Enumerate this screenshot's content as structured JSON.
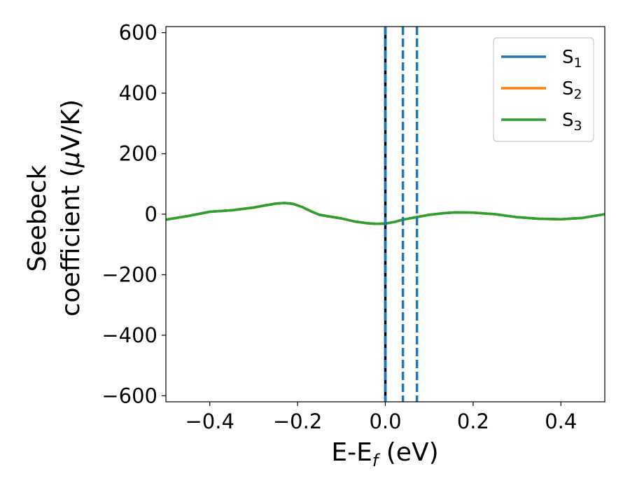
{
  "chart_data": {
    "type": "line",
    "xlabel": {
      "main": "E-E",
      "sub": "f",
      "suffix": " (eV)"
    },
    "ylabel": {
      "line1": "Seebeck",
      "line2_prefix": "coefficient  (",
      "mu": "μ",
      "line2_suffix": "V/K)"
    },
    "xlim": [
      -0.5,
      0.5
    ],
    "ylim": [
      -620,
      620
    ],
    "xticks": [
      -0.4,
      -0.2,
      0.0,
      0.2,
      0.4
    ],
    "xtick_labels": [
      "−0.4",
      "−0.2",
      "0.0",
      "0.2",
      "0.4"
    ],
    "yticks": [
      600,
      400,
      200,
      0,
      -200,
      -400,
      -600
    ],
    "ytick_labels": [
      "600",
      "400",
      "200",
      "0",
      "−200",
      "−400",
      "−600"
    ],
    "grid": false,
    "legend_position": "top-right",
    "x": [
      -0.5,
      -0.45,
      -0.4,
      -0.35,
      -0.3,
      -0.27,
      -0.25,
      -0.23,
      -0.21,
      -0.19,
      -0.17,
      -0.15,
      -0.13,
      -0.1,
      -0.07,
      -0.04,
      -0.02,
      0.0,
      0.02,
      0.04,
      0.07,
      0.1,
      0.13,
      0.16,
      0.2,
      0.25,
      0.3,
      0.35,
      0.4,
      0.45,
      0.5
    ],
    "series": [
      {
        "name": "S",
        "sub": "1",
        "color": "#1f77b4",
        "values": [
          -18,
          -6,
          8,
          13,
          22,
          30,
          35,
          37,
          34,
          24,
          10,
          -2,
          -7,
          -14,
          -24,
          -30,
          -32,
          -31,
          -26,
          -18,
          -10,
          -2,
          3,
          6,
          5,
          0,
          -10,
          -15,
          -17,
          -12,
          0
        ]
      },
      {
        "name": "S",
        "sub": "2",
        "color": "#ff7f0e",
        "values": [
          -18,
          -6,
          8,
          13,
          22,
          30,
          35,
          37,
          34,
          24,
          10,
          -2,
          -7,
          -14,
          -24,
          -30,
          -32,
          -31,
          -26,
          -18,
          -10,
          -2,
          3,
          6,
          5,
          0,
          -10,
          -15,
          -17,
          -12,
          0
        ]
      },
      {
        "name": "S",
        "sub": "3",
        "color": "#2ca02c",
        "values": [
          -18,
          -6,
          8,
          13,
          22,
          30,
          35,
          37,
          34,
          24,
          10,
          -2,
          -7,
          -14,
          -24,
          -30,
          -32,
          -31,
          -26,
          -18,
          -10,
          -2,
          3,
          6,
          5,
          0,
          -10,
          -15,
          -17,
          -12,
          0
        ]
      }
    ],
    "vlines": [
      {
        "x": 0.0,
        "color": "#000000",
        "style": "solid"
      },
      {
        "x": 0.0,
        "color": "#1f77b4",
        "style": "dashed"
      },
      {
        "x": 0.04,
        "color": "#1f77b4",
        "style": "dashed"
      },
      {
        "x": 0.072,
        "color": "#1f77b4",
        "style": "dashed"
      }
    ]
  }
}
